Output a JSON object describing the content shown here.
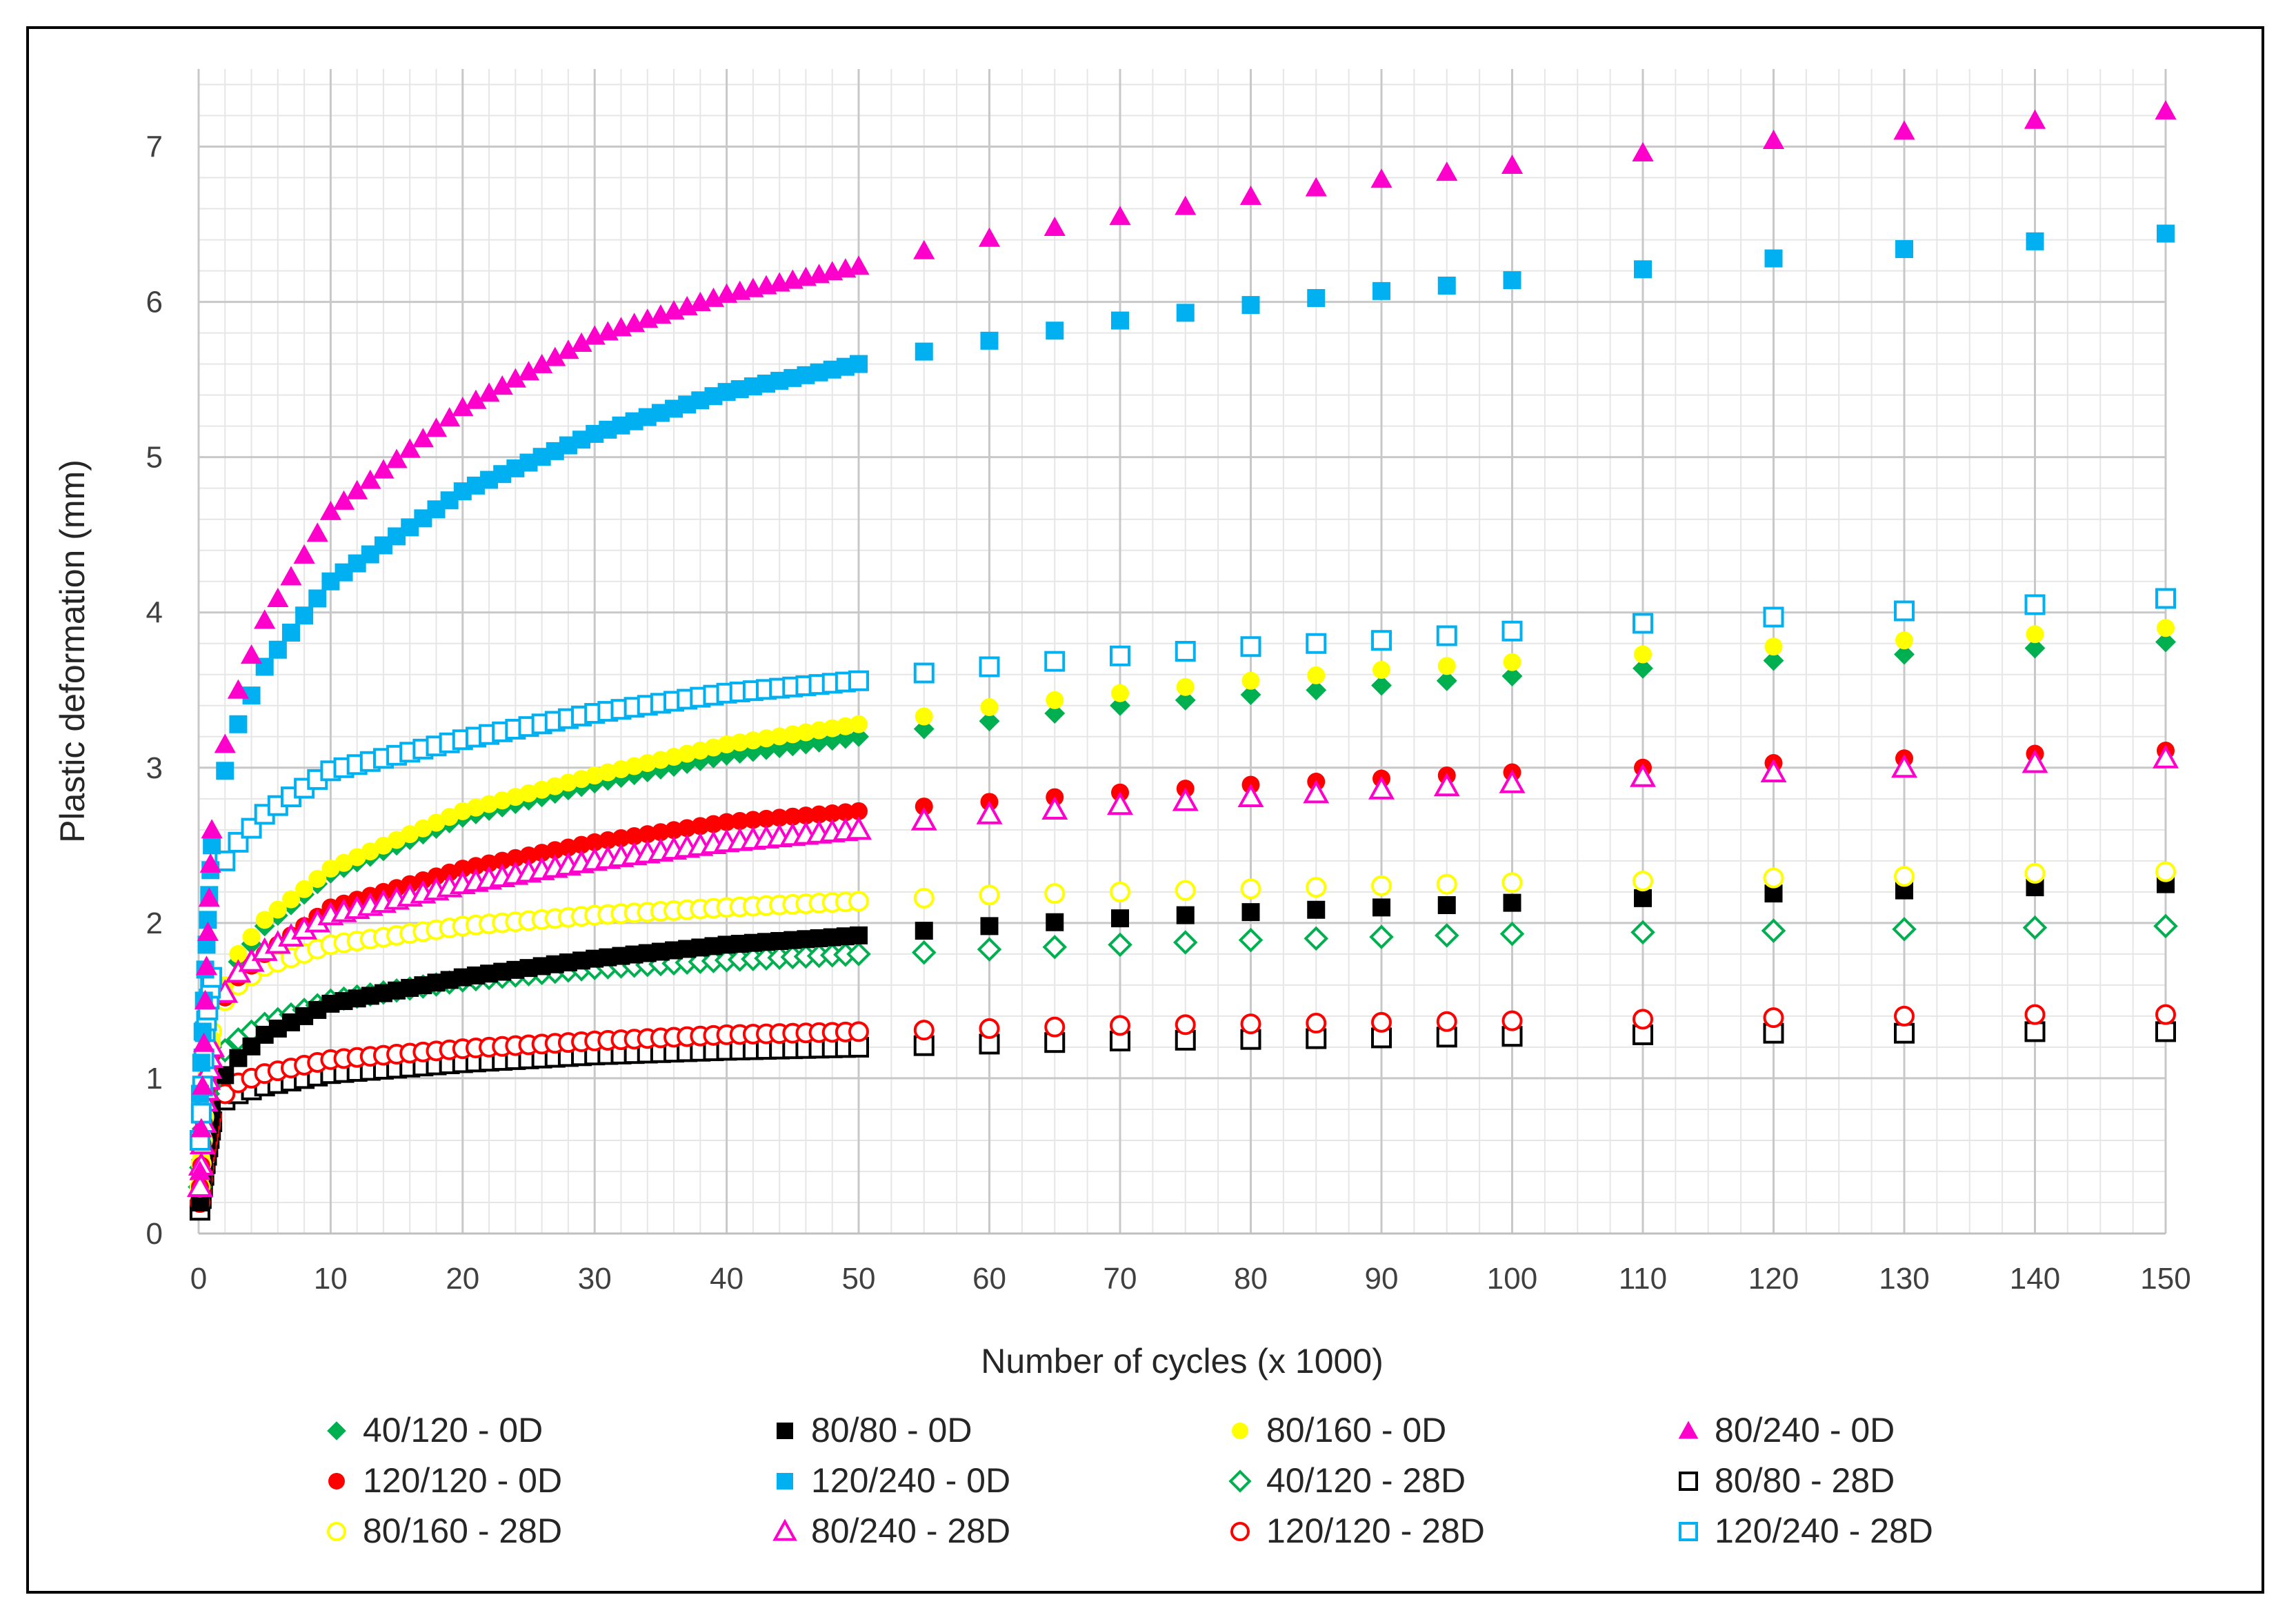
{
  "chart_data": {
    "type": "scatter",
    "title": "",
    "xlabel": "Number of cycles (x 1000)",
    "ylabel": "Plastic deformation (mm)",
    "xlim": [
      0,
      150
    ],
    "ylim": [
      0,
      7.5
    ],
    "x_tick_values": [
      0,
      10,
      20,
      30,
      40,
      50,
      60,
      70,
      80,
      90,
      100,
      110,
      120,
      130,
      140,
      150
    ],
    "x_tick_labels": [
      "0",
      "10",
      "20",
      "30",
      "40",
      "50",
      "60",
      "70",
      "80",
      "90",
      "100",
      "110",
      "120",
      "130",
      "140",
      "150"
    ],
    "y_tick_values": [
      0,
      1,
      2,
      3,
      4,
      5,
      6,
      7
    ],
    "y_tick_labels": [
      "0",
      "1",
      "2",
      "3",
      "4",
      "5",
      "6",
      "7"
    ],
    "grid": true,
    "minor_grid": true,
    "legend_position": "bottom",
    "x_segment_1": [
      0.1,
      0.2,
      0.3,
      0.4,
      0.5,
      0.6,
      0.7,
      0.8,
      0.9,
      1,
      2,
      3,
      4,
      5,
      6,
      7,
      8,
      9,
      10,
      11,
      12,
      13,
      14,
      15,
      16,
      17,
      18,
      19,
      20,
      21,
      22,
      23,
      24,
      25,
      26,
      27,
      28,
      29,
      30,
      31,
      32,
      33,
      34,
      35,
      36,
      37,
      38,
      39,
      40,
      41,
      42,
      43,
      44,
      45,
      46,
      47,
      48,
      49,
      50
    ],
    "x_segment_2": [
      55,
      60,
      65,
      70,
      75,
      80,
      85,
      90,
      95,
      100,
      110,
      120,
      130,
      140,
      150
    ],
    "series": [
      {
        "name": "40/120 - 0D",
        "marker": "diamond",
        "filled": true,
        "color": "#00B050",
        "anchors": [
          [
            0.1,
            0.35
          ],
          [
            0.5,
            0.85
          ],
          [
            1,
            1.2
          ],
          [
            2,
            1.58
          ],
          [
            3,
            1.75
          ],
          [
            5,
            1.98
          ],
          [
            10,
            2.32
          ],
          [
            20,
            2.68
          ],
          [
            30,
            2.9
          ],
          [
            40,
            3.08
          ],
          [
            50,
            3.2
          ],
          [
            55,
            3.25
          ],
          [
            60,
            3.3
          ],
          [
            70,
            3.4
          ],
          [
            80,
            3.47
          ],
          [
            90,
            3.53
          ],
          [
            100,
            3.59
          ],
          [
            110,
            3.64
          ],
          [
            120,
            3.69
          ],
          [
            130,
            3.73
          ],
          [
            140,
            3.77
          ],
          [
            150,
            3.81
          ]
        ]
      },
      {
        "name": "80/80 - 0D",
        "marker": "square",
        "filled": true,
        "color": "#000000",
        "anchors": [
          [
            0.1,
            0.2
          ],
          [
            0.5,
            0.55
          ],
          [
            1,
            0.8
          ],
          [
            2,
            1.02
          ],
          [
            3,
            1.13
          ],
          [
            5,
            1.28
          ],
          [
            10,
            1.48
          ],
          [
            20,
            1.65
          ],
          [
            30,
            1.77
          ],
          [
            40,
            1.86
          ],
          [
            50,
            1.92
          ],
          [
            55,
            1.95
          ],
          [
            60,
            1.98
          ],
          [
            70,
            2.03
          ],
          [
            80,
            2.07
          ],
          [
            90,
            2.1
          ],
          [
            100,
            2.13
          ],
          [
            110,
            2.16
          ],
          [
            120,
            2.19
          ],
          [
            130,
            2.21
          ],
          [
            140,
            2.23
          ],
          [
            150,
            2.25
          ]
        ]
      },
      {
        "name": "80/160 - 0D",
        "marker": "circle",
        "filled": true,
        "color": "#FFFF00",
        "anchors": [
          [
            0.1,
            0.35
          ],
          [
            0.5,
            0.9
          ],
          [
            1,
            1.25
          ],
          [
            2,
            1.6
          ],
          [
            3,
            1.8
          ],
          [
            5,
            2.02
          ],
          [
            10,
            2.35
          ],
          [
            20,
            2.72
          ],
          [
            30,
            2.95
          ],
          [
            40,
            3.15
          ],
          [
            50,
            3.28
          ],
          [
            55,
            3.33
          ],
          [
            60,
            3.39
          ],
          [
            70,
            3.48
          ],
          [
            80,
            3.56
          ],
          [
            90,
            3.63
          ],
          [
            100,
            3.68
          ],
          [
            110,
            3.73
          ],
          [
            120,
            3.78
          ],
          [
            130,
            3.82
          ],
          [
            140,
            3.86
          ],
          [
            150,
            3.9
          ]
        ]
      },
      {
        "name": "80/240 - 0D",
        "marker": "triangle",
        "filled": true,
        "color": "#FF00CC",
        "anchors": [
          [
            0.1,
            0.4
          ],
          [
            0.5,
            1.5
          ],
          [
            1,
            2.6
          ],
          [
            2,
            3.15
          ],
          [
            3,
            3.5
          ],
          [
            5,
            3.95
          ],
          [
            10,
            4.65
          ],
          [
            20,
            5.32
          ],
          [
            30,
            5.78
          ],
          [
            40,
            6.05
          ],
          [
            50,
            6.23
          ],
          [
            55,
            6.33
          ],
          [
            60,
            6.41
          ],
          [
            70,
            6.55
          ],
          [
            80,
            6.68
          ],
          [
            90,
            6.79
          ],
          [
            100,
            6.88
          ],
          [
            110,
            6.96
          ],
          [
            120,
            7.04
          ],
          [
            130,
            7.1
          ],
          [
            140,
            7.17
          ],
          [
            150,
            7.23
          ]
        ]
      },
      {
        "name": "120/120 - 0D",
        "marker": "circle",
        "filled": true,
        "color": "#FF0000",
        "anchors": [
          [
            0.1,
            0.3
          ],
          [
            0.5,
            0.85
          ],
          [
            1,
            1.15
          ],
          [
            2,
            1.52
          ],
          [
            3,
            1.65
          ],
          [
            5,
            1.8
          ],
          [
            10,
            2.1
          ],
          [
            20,
            2.35
          ],
          [
            30,
            2.52
          ],
          [
            40,
            2.65
          ],
          [
            50,
            2.72
          ],
          [
            55,
            2.75
          ],
          [
            60,
            2.78
          ],
          [
            70,
            2.84
          ],
          [
            80,
            2.89
          ],
          [
            90,
            2.93
          ],
          [
            100,
            2.97
          ],
          [
            110,
            3.0
          ],
          [
            120,
            3.03
          ],
          [
            130,
            3.06
          ],
          [
            140,
            3.09
          ],
          [
            150,
            3.11
          ]
        ]
      },
      {
        "name": "120/240 - 0D",
        "marker": "square",
        "filled": true,
        "color": "#00B0F0",
        "anchors": [
          [
            0.1,
            0.9
          ],
          [
            0.5,
            1.7
          ],
          [
            1,
            2.5
          ],
          [
            2,
            2.98
          ],
          [
            3,
            3.28
          ],
          [
            5,
            3.65
          ],
          [
            10,
            4.2
          ],
          [
            20,
            4.78
          ],
          [
            30,
            5.15
          ],
          [
            40,
            5.42
          ],
          [
            50,
            5.6
          ],
          [
            55,
            5.68
          ],
          [
            60,
            5.75
          ],
          [
            70,
            5.88
          ],
          [
            80,
            5.98
          ],
          [
            90,
            6.07
          ],
          [
            100,
            6.14
          ],
          [
            110,
            6.21
          ],
          [
            120,
            6.28
          ],
          [
            130,
            6.34
          ],
          [
            140,
            6.39
          ],
          [
            150,
            6.44
          ]
        ]
      },
      {
        "name": "40/120 - 28D",
        "marker": "diamond",
        "filled": false,
        "color": "#00B050",
        "anchors": [
          [
            0.1,
            0.3
          ],
          [
            0.5,
            0.8
          ],
          [
            1,
            1.05
          ],
          [
            2,
            1.18
          ],
          [
            3,
            1.25
          ],
          [
            5,
            1.35
          ],
          [
            10,
            1.5
          ],
          [
            20,
            1.63
          ],
          [
            30,
            1.71
          ],
          [
            40,
            1.76
          ],
          [
            50,
            1.8
          ],
          [
            55,
            1.81
          ],
          [
            60,
            1.83
          ],
          [
            70,
            1.86
          ],
          [
            80,
            1.89
          ],
          [
            90,
            1.91
          ],
          [
            100,
            1.93
          ],
          [
            110,
            1.94
          ],
          [
            120,
            1.95
          ],
          [
            130,
            1.96
          ],
          [
            140,
            1.97
          ],
          [
            150,
            1.98
          ]
        ]
      },
      {
        "name": "80/80 - 28D",
        "marker": "square",
        "filled": false,
        "color": "#000000",
        "anchors": [
          [
            0.1,
            0.15
          ],
          [
            0.5,
            0.45
          ],
          [
            1,
            0.72
          ],
          [
            2,
            0.86
          ],
          [
            3,
            0.9
          ],
          [
            5,
            0.95
          ],
          [
            10,
            1.03
          ],
          [
            20,
            1.1
          ],
          [
            30,
            1.15
          ],
          [
            40,
            1.18
          ],
          [
            50,
            1.2
          ],
          [
            55,
            1.21
          ],
          [
            60,
            1.22
          ],
          [
            70,
            1.24
          ],
          [
            80,
            1.25
          ],
          [
            90,
            1.26
          ],
          [
            100,
            1.27
          ],
          [
            110,
            1.28
          ],
          [
            120,
            1.29
          ],
          [
            130,
            1.29
          ],
          [
            140,
            1.3
          ],
          [
            150,
            1.3
          ]
        ]
      },
      {
        "name": "80/160 - 28D",
        "marker": "circle",
        "filled": false,
        "color": "#FFFF00",
        "anchors": [
          [
            0.1,
            0.3
          ],
          [
            0.5,
            0.9
          ],
          [
            1,
            1.3
          ],
          [
            2,
            1.5
          ],
          [
            3,
            1.6
          ],
          [
            5,
            1.72
          ],
          [
            10,
            1.86
          ],
          [
            20,
            1.98
          ],
          [
            30,
            2.05
          ],
          [
            40,
            2.1
          ],
          [
            50,
            2.14
          ],
          [
            55,
            2.16
          ],
          [
            60,
            2.18
          ],
          [
            70,
            2.2
          ],
          [
            80,
            2.22
          ],
          [
            90,
            2.24
          ],
          [
            100,
            2.26
          ],
          [
            110,
            2.27
          ],
          [
            120,
            2.29
          ],
          [
            130,
            2.3
          ],
          [
            140,
            2.32
          ],
          [
            150,
            2.33
          ]
        ]
      },
      {
        "name": "80/240 - 28D",
        "marker": "triangle",
        "filled": false,
        "color": "#FF00CC",
        "anchors": [
          [
            0.1,
            0.3
          ],
          [
            0.5,
            0.85
          ],
          [
            1,
            1.2
          ],
          [
            2,
            1.55
          ],
          [
            3,
            1.68
          ],
          [
            5,
            1.82
          ],
          [
            10,
            2.05
          ],
          [
            20,
            2.25
          ],
          [
            30,
            2.4
          ],
          [
            40,
            2.52
          ],
          [
            50,
            2.6
          ],
          [
            55,
            2.66
          ],
          [
            60,
            2.7
          ],
          [
            70,
            2.76
          ],
          [
            80,
            2.81
          ],
          [
            90,
            2.86
          ],
          [
            100,
            2.9
          ],
          [
            110,
            2.94
          ],
          [
            120,
            2.97
          ],
          [
            130,
            3.0
          ],
          [
            140,
            3.03
          ],
          [
            150,
            3.06
          ]
        ]
      },
      {
        "name": "120/120 - 28D",
        "marker": "circle",
        "filled": false,
        "color": "#FF0000",
        "anchors": [
          [
            0.1,
            0.2
          ],
          [
            0.5,
            0.5
          ],
          [
            1,
            0.75
          ],
          [
            2,
            0.9
          ],
          [
            3,
            0.97
          ],
          [
            5,
            1.03
          ],
          [
            10,
            1.12
          ],
          [
            20,
            1.19
          ],
          [
            30,
            1.24
          ],
          [
            40,
            1.28
          ],
          [
            50,
            1.3
          ],
          [
            55,
            1.31
          ],
          [
            60,
            1.32
          ],
          [
            70,
            1.34
          ],
          [
            80,
            1.35
          ],
          [
            90,
            1.36
          ],
          [
            100,
            1.37
          ],
          [
            110,
            1.38
          ],
          [
            120,
            1.39
          ],
          [
            130,
            1.4
          ],
          [
            140,
            1.41
          ],
          [
            150,
            1.41
          ]
        ]
      },
      {
        "name": "120/240 - 28D",
        "marker": "square",
        "filled": false,
        "color": "#00B0F0",
        "anchors": [
          [
            0.1,
            0.6
          ],
          [
            0.5,
            1.3
          ],
          [
            1,
            1.65
          ],
          [
            2,
            2.4
          ],
          [
            3,
            2.52
          ],
          [
            5,
            2.7
          ],
          [
            10,
            2.98
          ],
          [
            20,
            3.18
          ],
          [
            30,
            3.35
          ],
          [
            40,
            3.48
          ],
          [
            50,
            3.56
          ],
          [
            55,
            3.61
          ],
          [
            60,
            3.65
          ],
          [
            70,
            3.72
          ],
          [
            80,
            3.78
          ],
          [
            90,
            3.82
          ],
          [
            100,
            3.88
          ],
          [
            110,
            3.93
          ],
          [
            120,
            3.97
          ],
          [
            130,
            4.01
          ],
          [
            140,
            4.05
          ],
          [
            150,
            4.09
          ]
        ]
      }
    ]
  }
}
